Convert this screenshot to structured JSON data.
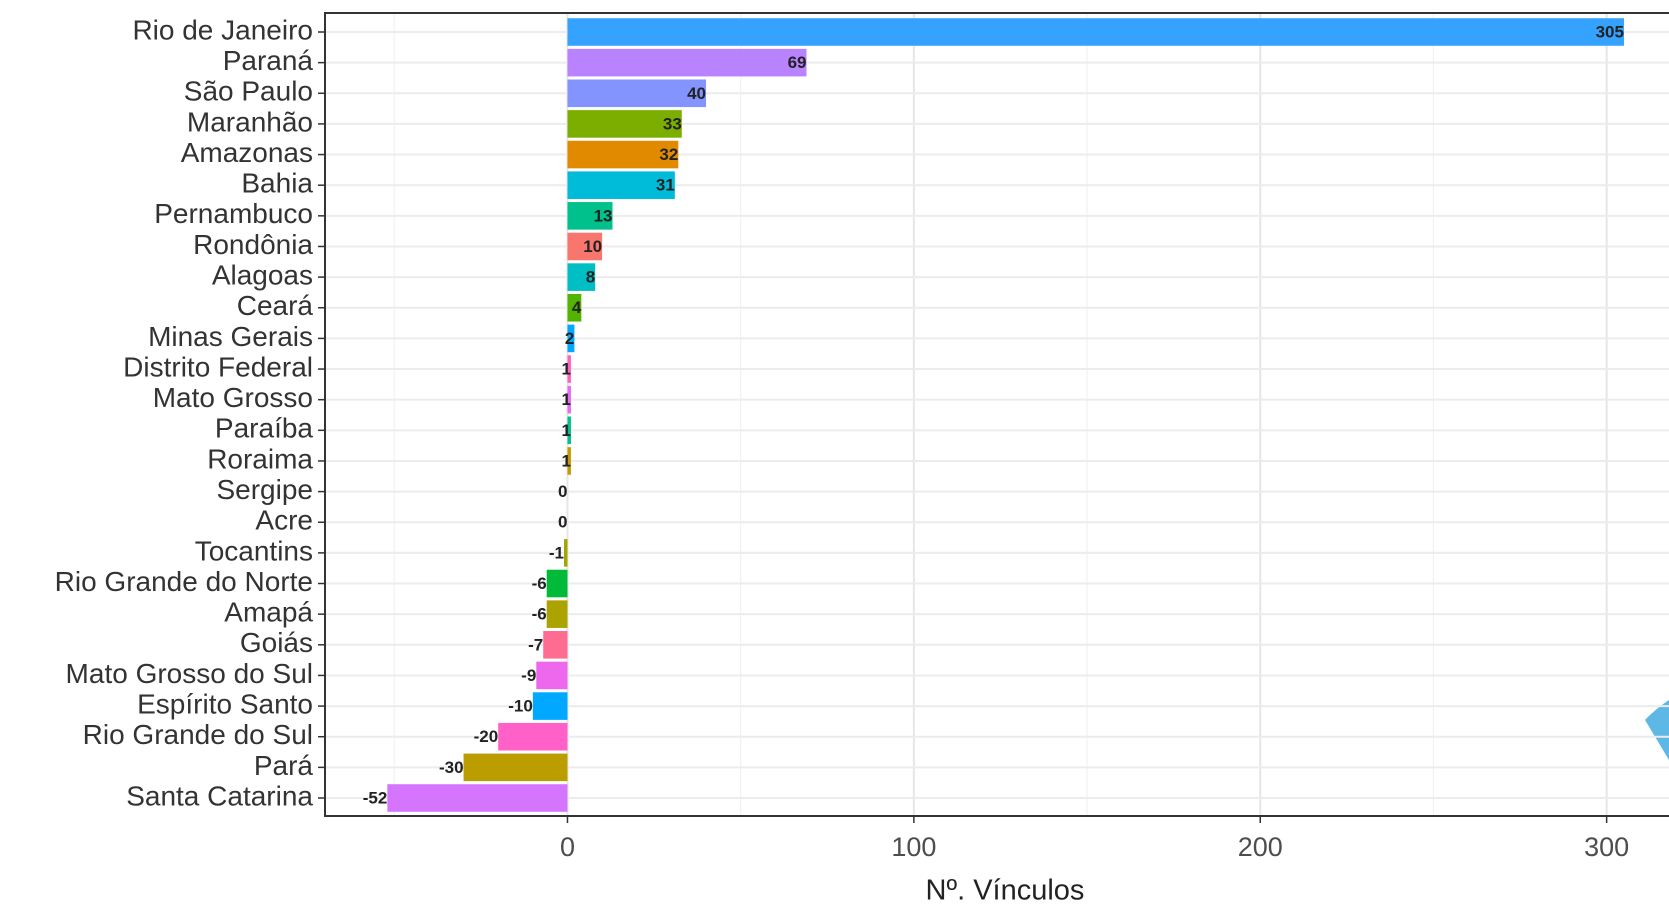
{
  "chart_data": {
    "type": "hbar",
    "x_label": "Nº. Vínculos",
    "categories": [
      "Rio de Janeiro",
      "Paraná",
      "São Paulo",
      "Maranhão",
      "Amazonas",
      "Bahia",
      "Pernambuco",
      "Rondônia",
      "Alagoas",
      "Ceará",
      "Minas Gerais",
      "Distrito Federal",
      "Mato Grosso",
      "Paraíba",
      "Roraima",
      "Sergipe",
      "Acre",
      "Tocantins",
      "Rio Grande do Norte",
      "Amapá",
      "Goiás",
      "Mato Grosso do Sul",
      "Espírito Santo",
      "Rio Grande do Sul",
      "Pará",
      "Santa Catarina"
    ],
    "values": [
      305,
      69,
      40,
      33,
      32,
      31,
      13,
      10,
      8,
      4,
      2,
      1,
      1,
      1,
      1,
      0,
      0,
      -1,
      -6,
      -6,
      -7,
      -9,
      -10,
      -20,
      -30,
      -52
    ],
    "colors": [
      "#35A2FF",
      "#B983FF",
      "#8494FF",
      "#7CAE00",
      "#E18A00",
      "#00BCD8",
      "#00C08B",
      "#F8766D",
      "#00BFC4",
      "#53B400",
      "#00A9FF",
      "#FF61C3",
      "#E76BF3",
      "#00C08B",
      "#C49A00",
      "#00B4F0",
      "#F8766D",
      "#A3A500",
      "#00BA38",
      "#ABA300",
      "#FF6C91",
      "#ED68ED",
      "#00A9FF",
      "#FF61C9",
      "#BB9D00",
      "#D575FE"
    ],
    "xlim": [
      -70,
      318
    ],
    "xticks": [
      0,
      100,
      200,
      300
    ],
    "minor_xticks": [
      -50,
      50,
      150,
      250
    ],
    "grid": true
  }
}
